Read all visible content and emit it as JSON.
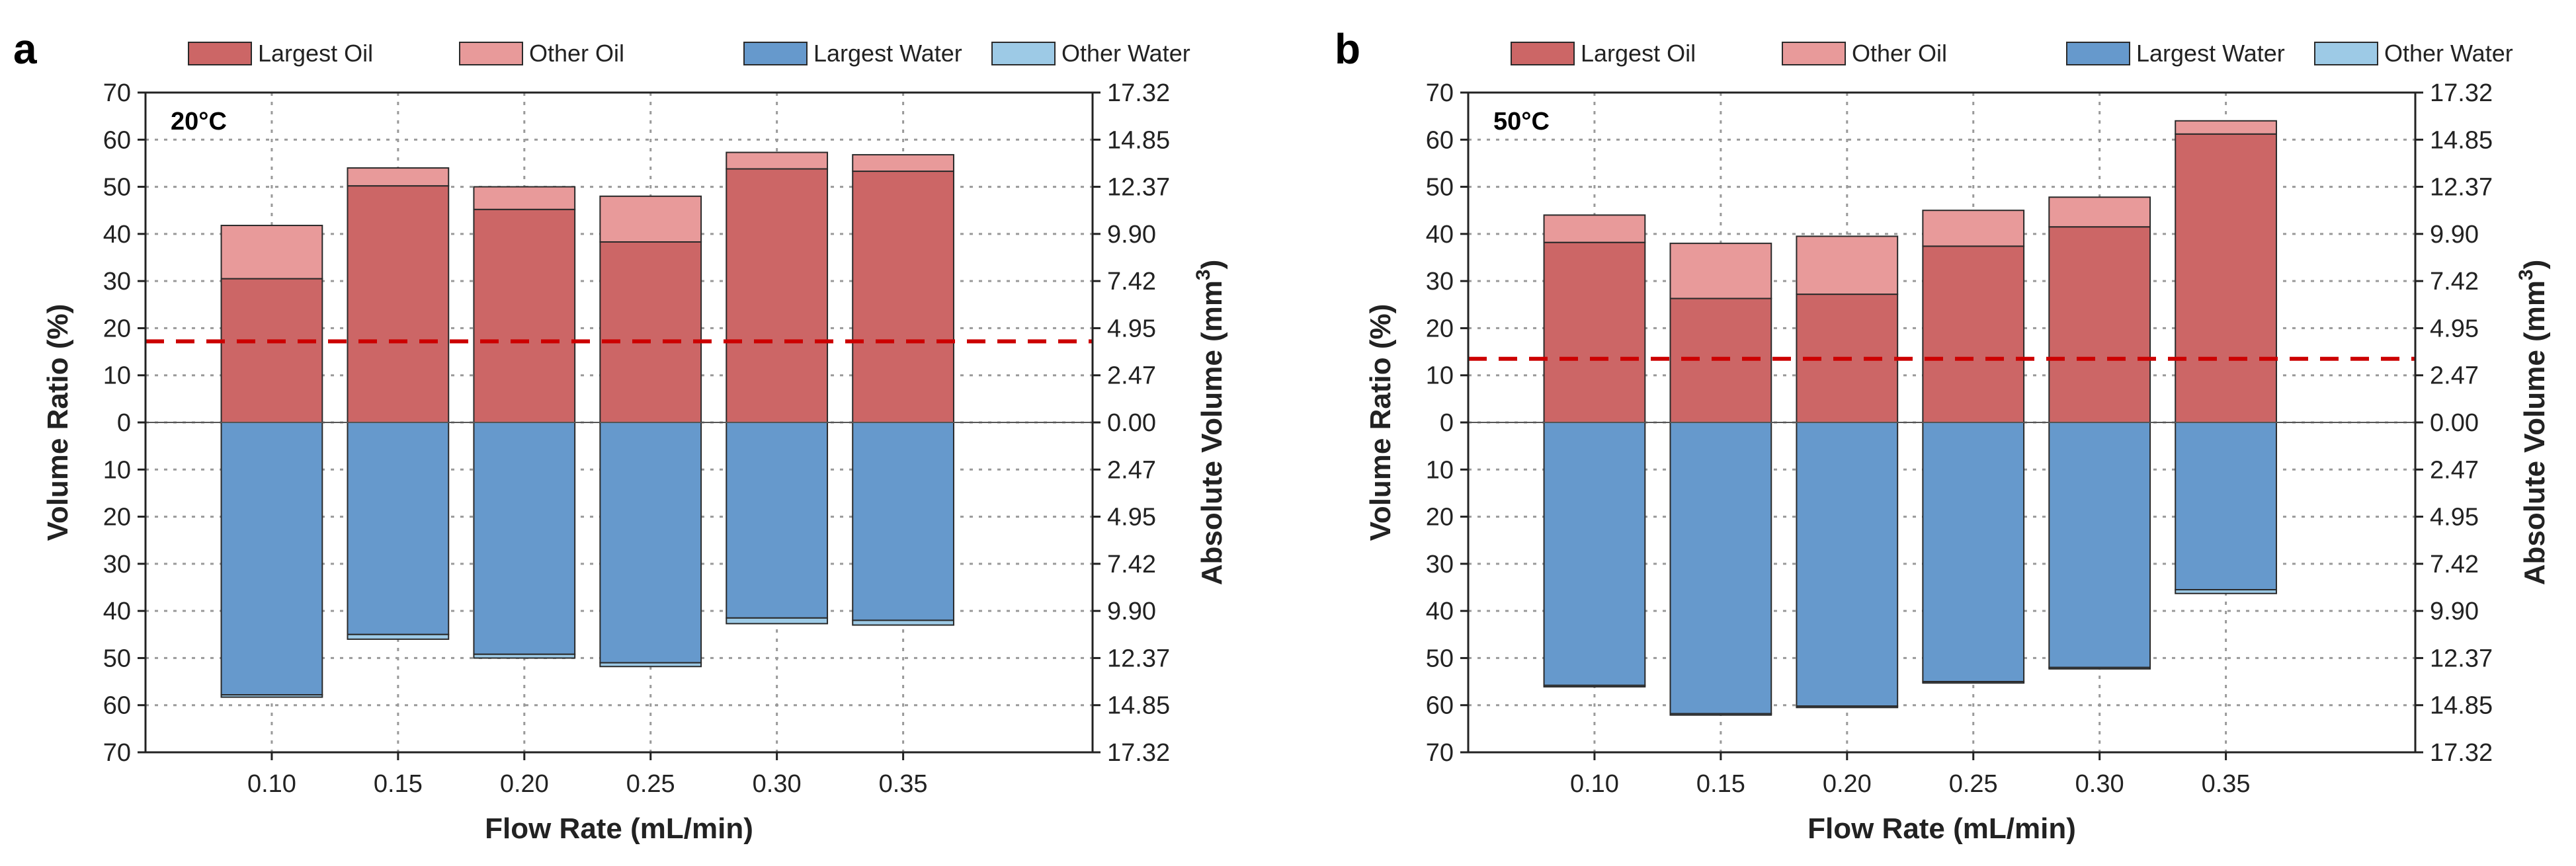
{
  "chart_data": [
    {
      "type": "bar",
      "panel_label": "a",
      "title": "20°C",
      "xlabel": "Flow Rate (mL/min)",
      "ylabel": "Volume Ratio (%)",
      "y2label": "Absolute Volume (mm3)",
      "categories": [
        "0.10",
        "0.15",
        "0.20",
        "0.25",
        "0.30",
        "0.35"
      ],
      "series": [
        {
          "name": "Largest Oil",
          "color": "#cc6666",
          "direction": "up",
          "values": [
            30.5,
            50.2,
            45.2,
            38.3,
            53.8,
            53.3
          ]
        },
        {
          "name": "Other Oil",
          "color": "#e89a9a",
          "direction": "up",
          "values": [
            11.3,
            3.8,
            4.8,
            9.7,
            3.5,
            3.5
          ]
        },
        {
          "name": "Largest Water",
          "color": "#6699cc",
          "direction": "down",
          "values": [
            57.8,
            45.0,
            49.2,
            51.0,
            41.5,
            42.0
          ]
        },
        {
          "name": "Other Water",
          "color": "#9dcae6",
          "direction": "down",
          "values": [
            0.5,
            1.0,
            0.8,
            0.8,
            1.2,
            1.0
          ]
        }
      ],
      "threshold": 17.2,
      "ylim": [
        -70,
        70
      ],
      "yticks": [
        -70,
        -60,
        -50,
        -40,
        -30,
        -20,
        -10,
        0,
        10,
        20,
        30,
        40,
        50,
        60,
        70
      ],
      "ytick_labels": [
        "70",
        "60",
        "50",
        "40",
        "30",
        "20",
        "10",
        "0",
        "10",
        "20",
        "30",
        "40",
        "50",
        "60",
        "70"
      ],
      "y2tick_labels": [
        "17.32",
        "14.85",
        "12.37",
        "9.90",
        "7.42",
        "4.95",
        "2.47",
        "0.00",
        "2.47",
        "4.95",
        "7.42",
        "9.90",
        "12.37",
        "14.85",
        "17.32"
      ],
      "grid": true,
      "legend": [
        "Largest Oil",
        "Other Oil",
        "Largest Water",
        "Other Water"
      ],
      "legend_position": "top-center"
    },
    {
      "type": "bar",
      "panel_label": "b",
      "title": "50°C",
      "xlabel": "Flow Rate (mL/min)",
      "ylabel": "Volume Ratio (%)",
      "y2label": "Absolute Volume (mm3)",
      "categories": [
        "0.10",
        "0.15",
        "0.20",
        "0.25",
        "0.30",
        "0.35"
      ],
      "series": [
        {
          "name": "Largest Oil",
          "color": "#cc6666",
          "direction": "up",
          "values": [
            38.2,
            26.3,
            27.2,
            37.4,
            41.5,
            61.2
          ]
        },
        {
          "name": "Other Oil",
          "color": "#e89a9a",
          "direction": "up",
          "values": [
            5.8,
            11.7,
            12.3,
            7.6,
            6.3,
            2.8
          ]
        },
        {
          "name": "Largest Water",
          "color": "#6699cc",
          "direction": "down",
          "values": [
            55.8,
            61.8,
            60.2,
            55.0,
            52.0,
            35.5
          ]
        },
        {
          "name": "Other Water",
          "color": "#9dcae6",
          "direction": "down",
          "values": [
            0.3,
            0.3,
            0.3,
            0.3,
            0.3,
            0.8
          ]
        }
      ],
      "threshold": 13.5,
      "ylim": [
        -70,
        70
      ],
      "yticks": [
        -70,
        -60,
        -50,
        -40,
        -30,
        -20,
        -10,
        0,
        10,
        20,
        30,
        40,
        50,
        60,
        70
      ],
      "ytick_labels": [
        "70",
        "60",
        "50",
        "40",
        "30",
        "20",
        "10",
        "0",
        "10",
        "20",
        "30",
        "40",
        "50",
        "60",
        "70"
      ],
      "y2tick_labels": [
        "17.32",
        "14.85",
        "12.37",
        "9.90",
        "7.42",
        "4.95",
        "2.47",
        "0.00",
        "2.47",
        "4.95",
        "7.42",
        "9.90",
        "12.37",
        "14.85",
        "17.32"
      ],
      "grid": true,
      "legend": [
        "Largest Oil",
        "Other Oil",
        "Largest Water",
        "Other Water"
      ],
      "legend_position": "top-center"
    }
  ]
}
